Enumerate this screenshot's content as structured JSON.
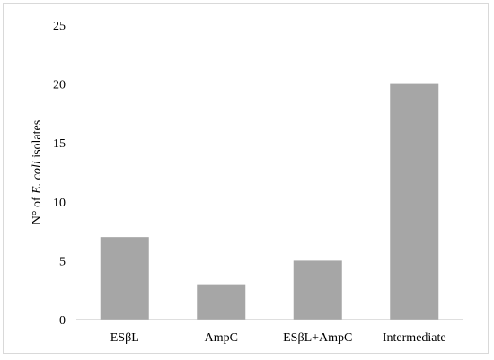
{
  "chart_data": {
    "type": "bar",
    "title": "",
    "xlabel": "",
    "ylabel_parts": [
      {
        "text": "N° of ",
        "italic": false
      },
      {
        "text": "E. coli",
        "italic": true
      },
      {
        "text": " isolates",
        "italic": false
      }
    ],
    "categories": [
      "ESβL",
      "AmpC",
      "ESβL+AmpC",
      "Intermediate"
    ],
    "values": [
      7,
      3,
      5,
      20
    ],
    "ylim": [
      0,
      25
    ],
    "yticks": [
      0,
      5,
      10,
      15,
      20,
      25
    ],
    "grid": false,
    "bar_color": "#a6a6a6",
    "axis_color": "#bfbfbf"
  }
}
